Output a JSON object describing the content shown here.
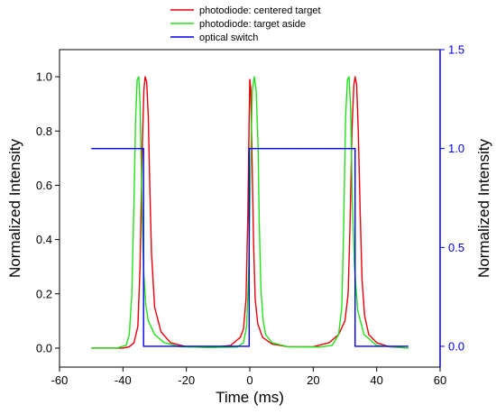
{
  "chart_data": {
    "type": "line",
    "title": "",
    "xlabel": "Time (ms)",
    "ylabel": "Normalized Intensity",
    "ylabel_right": "Normalized Intensity",
    "xlim": [
      -60,
      60
    ],
    "ylim": [
      -0.07,
      1.1
    ],
    "ylim_right": [
      -0.105,
      1.5
    ],
    "x_ticks": [
      -60,
      -40,
      -20,
      0,
      20,
      40,
      60
    ],
    "y_ticks": [
      0.0,
      0.2,
      0.4,
      0.6,
      0.8,
      1.0
    ],
    "y_ticks_right": [
      0.0,
      0.5,
      1.0,
      1.5
    ],
    "grid": false,
    "legend_position": "top-center",
    "colors": {
      "centered": "#e8000b",
      "aside": "#22e01a",
      "switch": "#0000ee",
      "right_axis": "#0000ee"
    },
    "series": [
      {
        "name": "photodiode: centered target",
        "axis": "left",
        "x": [
          -50,
          -40,
          -38,
          -36.5,
          -35.3,
          -34.6,
          -34.0,
          -33.4,
          -33.0,
          -32.5,
          -32.0,
          -31.5,
          -31.0,
          -30.0,
          -28.0,
          -25.0,
          -20.0,
          -12.0,
          -6.0,
          -3.0,
          -2.0,
          -1.2,
          -0.6,
          -0.2,
          0.0,
          0.3,
          0.7,
          1.2,
          1.7,
          2.5,
          4.0,
          7.0,
          12.0,
          20.0,
          25.0,
          28.0,
          30.0,
          31.0,
          31.6,
          32.2,
          32.8,
          33.2,
          33.7,
          34.2,
          34.8,
          35.4,
          36.2,
          37.5,
          40.0,
          44.0,
          50.0
        ],
        "y": [
          0.0,
          0.0,
          0.005,
          0.02,
          0.08,
          0.3,
          0.7,
          0.95,
          1.0,
          0.98,
          0.85,
          0.58,
          0.35,
          0.15,
          0.06,
          0.02,
          0.005,
          0.002,
          0.01,
          0.04,
          0.07,
          0.18,
          0.5,
          0.85,
          0.99,
          0.96,
          0.7,
          0.38,
          0.18,
          0.09,
          0.04,
          0.015,
          0.005,
          0.005,
          0.02,
          0.05,
          0.1,
          0.2,
          0.45,
          0.8,
          0.97,
          1.0,
          0.97,
          0.8,
          0.5,
          0.25,
          0.12,
          0.05,
          0.02,
          0.005,
          0.0
        ]
      },
      {
        "name": "photodiode: target aside",
        "axis": "left",
        "x": [
          -50,
          -42,
          -39,
          -38,
          -37.2,
          -36.5,
          -36.0,
          -35.5,
          -35.0,
          -34.6,
          -34.2,
          -33.8,
          -33.4,
          -32.8,
          -32.0,
          -30.0,
          -27.0,
          -22.0,
          -12.0,
          -4.0,
          -2.0,
          -1.0,
          -0.3,
          0.3,
          0.8,
          1.4,
          2.0,
          2.6,
          3.0,
          3.5,
          4.2,
          5.0,
          7.0,
          12.0,
          22.0,
          26.0,
          28.0,
          29.0,
          29.6,
          30.2,
          30.8,
          31.3,
          31.8,
          32.3,
          33.0,
          34.0,
          36.0,
          40.0,
          50.0
        ],
        "y": [
          0.0,
          0.0,
          0.01,
          0.05,
          0.2,
          0.55,
          0.85,
          0.99,
          1.0,
          0.9,
          0.65,
          0.42,
          0.27,
          0.16,
          0.1,
          0.05,
          0.02,
          0.005,
          0.002,
          0.004,
          0.02,
          0.08,
          0.3,
          0.7,
          0.95,
          1.0,
          0.95,
          0.75,
          0.45,
          0.22,
          0.1,
          0.05,
          0.02,
          0.005,
          0.004,
          0.01,
          0.05,
          0.15,
          0.45,
          0.85,
          0.99,
          1.0,
          0.88,
          0.55,
          0.3,
          0.14,
          0.05,
          0.01,
          0.0
        ]
      },
      {
        "name": "optical switch",
        "axis": "right",
        "x": [
          -50,
          -33.5,
          -33.5,
          -0.2,
          -0.2,
          33.2,
          33.2,
          50
        ],
        "y": [
          1.0,
          1.0,
          0.0,
          0.0,
          1.0,
          1.0,
          0.0,
          0.0
        ]
      }
    ]
  }
}
